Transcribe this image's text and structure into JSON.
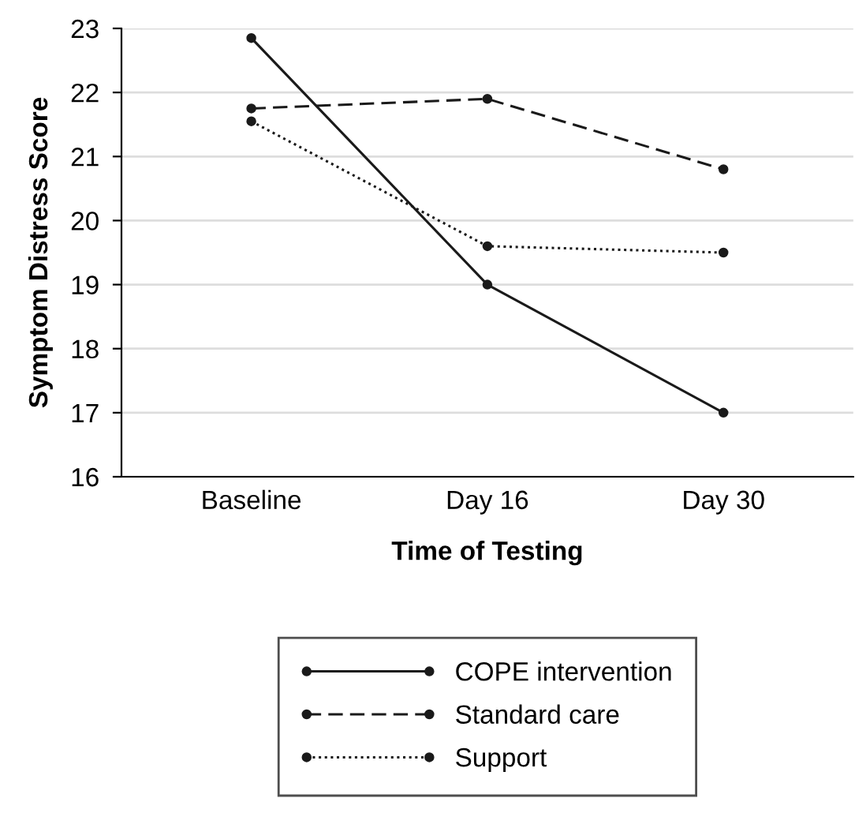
{
  "chart_data": {
    "type": "line",
    "xlabel": "Time of Testing",
    "ylabel": "Symptom Distress Score",
    "categories": [
      "Baseline",
      "Day 16",
      "Day 30"
    ],
    "series": [
      {
        "name": "COPE intervention",
        "color": "#1a1a1a",
        "line_style": "solid",
        "values": [
          22.85,
          19.0,
          17.0
        ]
      },
      {
        "name": "Standard care",
        "color": "#1a1a1a",
        "line_style": "dashed",
        "values": [
          21.75,
          21.9,
          20.8
        ]
      },
      {
        "name": "Support",
        "color": "#1a1a1a",
        "line_style": "dotted",
        "values": [
          21.55,
          19.6,
          19.5
        ]
      }
    ],
    "ylim": [
      16,
      23
    ],
    "yticks": [
      16,
      17,
      18,
      19,
      20,
      21,
      22,
      23
    ],
    "grid": "y",
    "legend": "bottom",
    "marker": "circle"
  }
}
